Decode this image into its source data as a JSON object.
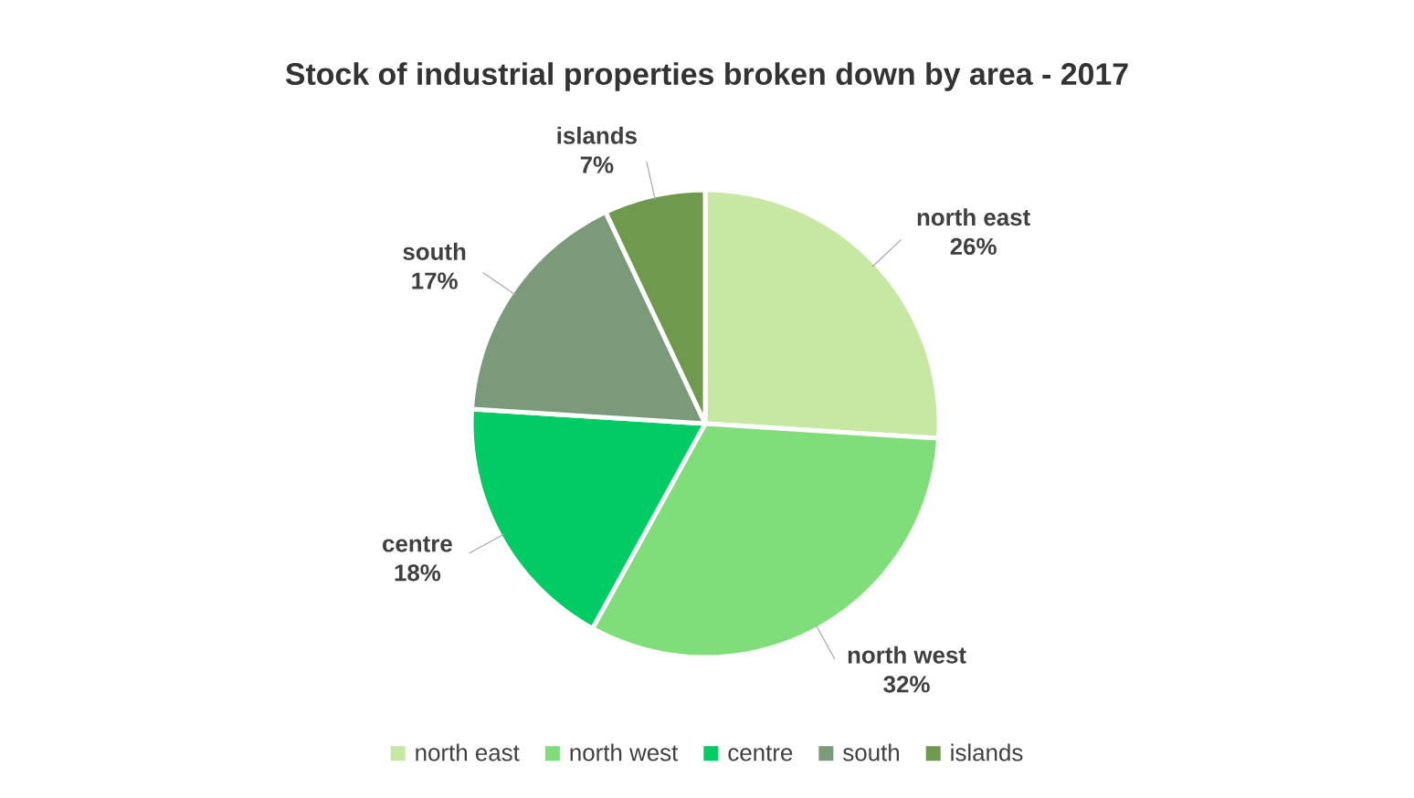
{
  "chart_data": {
    "type": "pie",
    "title": "Stock of industrial properties broken down by area - 2017",
    "categories": [
      "north east",
      "north west",
      "centre",
      "south",
      "islands"
    ],
    "values": [
      26,
      32,
      18,
      17,
      7
    ],
    "value_labels": [
      "26%",
      "32%",
      "18%",
      "17%",
      "7%"
    ],
    "colors": [
      "#c6e8a2",
      "#7fdd7a",
      "#00cc63",
      "#7b9a79",
      "#6f9a4e"
    ],
    "legend": "bottom"
  }
}
